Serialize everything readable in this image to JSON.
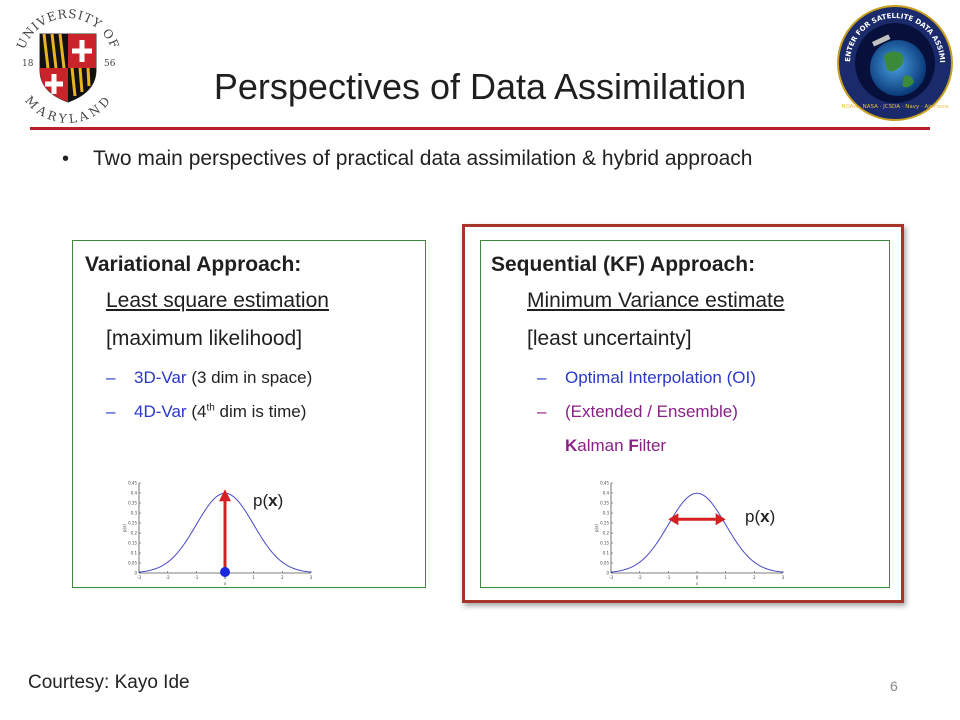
{
  "header": {
    "title": "Perspectives of Data Assimilation",
    "left_logo": {
      "name": "university-of-maryland-seal",
      "text_top": "UNIVERSITY OF",
      "text_bottom": "MARYLAND",
      "year_left": "18",
      "year_right": "56"
    },
    "right_logo": {
      "name": "jcsda-seal",
      "text": "JOINT CENTER FOR SATELLITE DATA ASSIMILATION",
      "text_bottom": "NOAA · NASA · JCSDA · Navy · Air Force"
    },
    "accent_color": "#b8202a"
  },
  "bullet": {
    "symbol": "•",
    "text": "Two main perspectives of practical data assimilation & hybrid approach"
  },
  "variational": {
    "heading": "Variational Approach:",
    "line1": "Least square estimation",
    "line2": "[maximum likelihood]",
    "items": [
      {
        "dash": "–",
        "name": "3D-Var",
        "rest": " (3 dim in space)"
      },
      {
        "dash": "–",
        "name": "4D-Var",
        "rest_a": " (4",
        "sup": "th",
        "rest_b": " dim is time)"
      }
    ],
    "plot_label": "p(x)",
    "plot_label_pre": "p(",
    "plot_label_var": "x",
    "plot_label_post": ")"
  },
  "sequential": {
    "heading": "Sequential (KF) Approach:",
    "line1": "Minimum Variance estimate",
    "line2": "[least uncertainty]",
    "items": [
      {
        "dash": "–",
        "text": "Optimal Interpolation (OI)"
      },
      {
        "dash": "–",
        "text": "(Extended / Ensemble)"
      }
    ],
    "kalman_k": "K",
    "kalman_a": "alman ",
    "kalman_f": "F",
    "kalman_b": "ilter",
    "plot_label_pre": "p(",
    "plot_label_var": "x",
    "plot_label_post": ")"
  },
  "plot": {
    "yticks": [
      "0.45",
      "0.4",
      "0.35",
      "0.3",
      "0.25",
      "0.2",
      "0.15",
      "0.1",
      "0.05",
      "0"
    ],
    "xticks": [
      "-3",
      "-2",
      "-1",
      "0",
      "1",
      "2",
      "3"
    ],
    "ylabel": "p(x)",
    "xlabel": "x",
    "curve_color": "#4a4ac8",
    "marker_color": "#d42020",
    "dot_color": "#1a2ad8"
  },
  "footer": {
    "courtesy": "Courtesy: Kayo Ide",
    "page_number": "6"
  }
}
